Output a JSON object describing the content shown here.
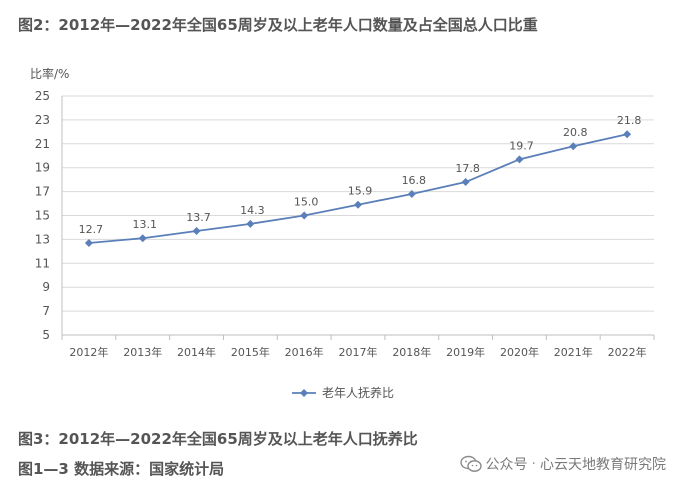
{
  "captions": {
    "top": "图2：2012年—2022年全国65周岁及以上老年人口数量及占全国总人口比重",
    "bottom": "图3：2012年—2022年全国65周岁及以上老年人口抚养比",
    "source": "图1—3 数据来源：国家统计局"
  },
  "watermark": {
    "prefix": "公众号",
    "separator": "·",
    "account": "心云天地教育研究院",
    "icon": "wechat-icon"
  },
  "chart_data": {
    "type": "line",
    "title": "",
    "ylabel": "比率/%",
    "xlabel": "",
    "categories": [
      "2012年",
      "2013年",
      "2014年",
      "2015年",
      "2016年",
      "2017年",
      "2018年",
      "2019年",
      "2020年",
      "2021年",
      "2022年"
    ],
    "series": [
      {
        "name": "老年人抚养比",
        "values": [
          12.7,
          13.1,
          13.7,
          14.3,
          15.0,
          15.9,
          16.8,
          17.8,
          19.7,
          20.8,
          21.8
        ],
        "labels": [
          "12.7",
          "13.1",
          "13.7",
          "14.3",
          "15.0",
          "15.9",
          "16.8",
          "17.8",
          "19.7",
          "20.8",
          "21.8"
        ],
        "color": "#5b7fb8"
      }
    ],
    "ylim": [
      5,
      25
    ],
    "yticks": [
      "5",
      "7",
      "9",
      "11",
      "13",
      "15",
      "17",
      "19",
      "21",
      "23",
      "25"
    ],
    "grid": true,
    "legend": "bottom-center",
    "colors": {
      "grid": "#d9d9d9",
      "axis": "#bfbfbf",
      "text": "#555555"
    }
  }
}
